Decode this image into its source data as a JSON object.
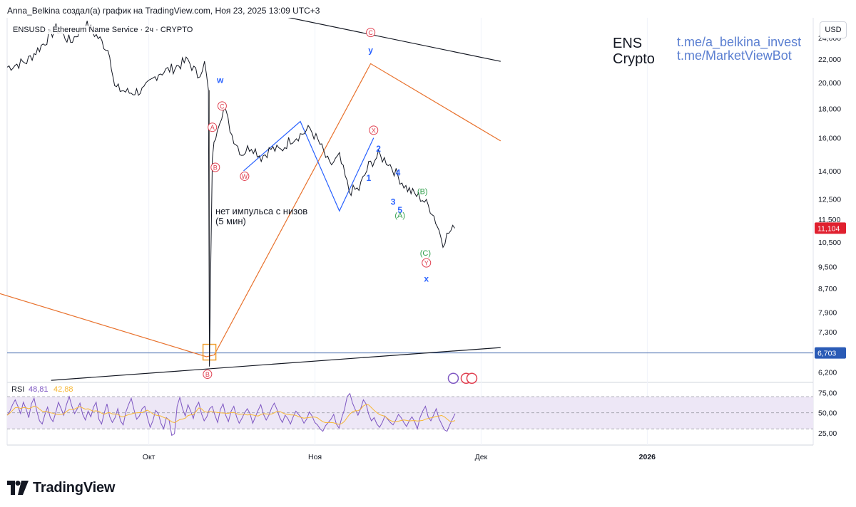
{
  "header": {
    "credit": "Anna_Belkina создал(а) график на TradingView.com, Ноя 23, 2025 13:09 UTC+3"
  },
  "chart_header": {
    "symbol": "ENSUSD · Ethereum Name Service · 2ч · CRYPTO",
    "currency": "USD"
  },
  "overlay": {
    "title_line1": "ENS",
    "title_line2": "Crypto",
    "link1": "t.me/a_belkina_invest",
    "link2": "t.me/MarketViewBot",
    "annotation_line1": "нет импульса с низов",
    "annotation_line2": "(5 мин)"
  },
  "footer": {
    "brand": "TradingView"
  },
  "colors": {
    "price_line": "#131722",
    "wave_blue": "#2962ff",
    "trend_orange": "#e8712c",
    "support_blue": "#4a6fb1",
    "red_label": "#e04050",
    "green_label": "#2e9e4a",
    "rsi_line": "#7e57c2",
    "rsi_ma": "#f7b733",
    "rsi_band": "#ede7f6",
    "price_badge": "#e0202f",
    "level_badge": "#2a5bb6"
  },
  "chart_data": [
    {
      "type": "line",
      "name": "ENSUSD 2h",
      "y_scale": "log",
      "ylim": [
        5900,
        26000
      ],
      "x_tick_labels": [
        "Окт",
        "Ноя",
        "Дек",
        "2026"
      ],
      "y_tick_labels": [
        "24,000",
        "22,000",
        "20,000",
        "18,000",
        "16,000",
        "14,000",
        "12,500",
        "11,500",
        "10,500",
        "9,500",
        "8,700",
        "7,900",
        "7,300",
        "6,200"
      ],
      "y_tick_values": [
        24000,
        22000,
        20000,
        18000,
        16000,
        14000,
        12500,
        11500,
        10500,
        9500,
        8700,
        7900,
        7300,
        6200
      ],
      "last_price": "11,104",
      "last_price_value": 11.104,
      "level_label": "6,703",
      "level_value": 6.703,
      "price_path": [
        [
          0,
          21.3
        ],
        [
          2,
          21.8
        ],
        [
          3.5,
          23.2
        ],
        [
          5,
          24.9
        ],
        [
          6.5,
          23.6
        ],
        [
          8,
          25.4
        ],
        [
          9.5,
          23.8
        ],
        [
          10.5,
          22.6
        ],
        [
          11,
          19.6
        ],
        [
          12.5,
          19.2
        ],
        [
          14,
          19.4
        ],
        [
          15.5,
          20.8
        ],
        [
          17,
          21.2
        ],
        [
          18.5,
          21.9
        ],
        [
          19.5,
          20.6
        ],
        [
          20.2,
          21.6
        ],
        [
          20.6,
          19.4
        ],
        [
          20.7,
          6.3
        ],
        [
          21,
          14.9
        ],
        [
          21.5,
          16.8
        ],
        [
          22.2,
          18.1
        ],
        [
          23,
          16.2
        ],
        [
          24,
          15.0
        ],
        [
          25,
          15.5
        ],
        [
          26,
          14.8
        ],
        [
          27,
          15.3
        ],
        [
          28,
          15.2
        ],
        [
          29,
          15.9
        ],
        [
          30,
          16.2
        ],
        [
          31,
          16.6
        ],
        [
          32,
          15.6
        ],
        [
          33,
          14.3
        ],
        [
          34,
          14.8
        ],
        [
          35,
          12.9
        ],
        [
          36,
          13.0
        ],
        [
          37,
          14.3
        ],
        [
          38,
          14.9
        ],
        [
          39,
          14.5
        ],
        [
          40,
          13.7
        ],
        [
          40.8,
          13.1
        ],
        [
          41.5,
          12.8
        ],
        [
          42.5,
          12.5
        ],
        [
          43.5,
          11.9
        ],
        [
          44.2,
          11.0
        ],
        [
          44.6,
          10.5
        ],
        [
          45.2,
          10.9
        ],
        [
          45.8,
          11.1
        ]
      ],
      "trendline_segments": [
        {
          "color": "orange",
          "points": [
            [
              -1.5,
              8.6
            ],
            [
              20.4,
              6.6
            ],
            [
              21.2,
              6.65
            ],
            [
              37.2,
              21.6
            ],
            [
              50.5,
              15.8
            ]
          ]
        },
        {
          "color": "black",
          "points": [
            [
              13.5,
              29.5
            ],
            [
              50.5,
              21.8
            ]
          ]
        },
        {
          "color": "black",
          "points": [
            [
              4.5,
              6.0
            ],
            [
              50.5,
              6.85
            ]
          ]
        },
        {
          "color": "blue",
          "points": [
            [
              24.2,
              14.0
            ],
            [
              30.0,
              17.1
            ],
            [
              34.0,
              11.9
            ],
            [
              37.5,
              16.0
            ]
          ]
        }
      ],
      "wave_labels": [
        {
          "text": "w",
          "style": "plain",
          "color": "blue",
          "at": [
            21.8,
            20.2
          ]
        },
        {
          "text": "C",
          "style": "circled",
          "color": "red",
          "at": [
            22.0,
            18.2
          ]
        },
        {
          "text": "A",
          "style": "circled",
          "color": "red",
          "at": [
            21.0,
            16.7
          ]
        },
        {
          "text": "B",
          "style": "circled",
          "color": "red",
          "at": [
            21.3,
            14.2
          ]
        },
        {
          "text": "W",
          "style": "circled",
          "color": "red",
          "at": [
            24.3,
            13.7
          ]
        },
        {
          "text": "X",
          "style": "circled",
          "color": "red",
          "at": [
            37.5,
            16.5
          ]
        },
        {
          "text": "2",
          "style": "plain",
          "color": "blue",
          "at": [
            38.0,
            15.3
          ]
        },
        {
          "text": "1",
          "style": "plain",
          "color": "blue",
          "at": [
            37.0,
            13.6
          ]
        },
        {
          "text": "4",
          "style": "plain",
          "color": "blue",
          "at": [
            40.0,
            13.9
          ]
        },
        {
          "text": "3",
          "style": "plain",
          "color": "blue",
          "at": [
            39.5,
            12.35
          ]
        },
        {
          "text": "5",
          "style": "plain",
          "color": "blue",
          "at": [
            40.2,
            11.95
          ]
        },
        {
          "text": "A",
          "style": "paren",
          "color": "green",
          "at": [
            40.2,
            11.7
          ]
        },
        {
          "text": "B",
          "style": "paren",
          "color": "green",
          "at": [
            42.5,
            12.9
          ]
        },
        {
          "text": "C",
          "style": "paren",
          "color": "green",
          "at": [
            42.8,
            10.05
          ]
        },
        {
          "text": "Y",
          "style": "circled",
          "color": "red",
          "at": [
            42.9,
            9.65
          ]
        },
        {
          "text": "x",
          "style": "plain",
          "color": "blue",
          "at": [
            42.9,
            9.05
          ]
        },
        {
          "text": "C",
          "style": "circled",
          "color": "red",
          "at": [
            37.2,
            24.5
          ]
        },
        {
          "text": "y",
          "style": "plain",
          "color": "blue",
          "at": [
            37.2,
            22.8
          ]
        },
        {
          "text": "B",
          "style": "circled",
          "color": "red",
          "at": [
            20.5,
            6.15
          ]
        }
      ],
      "x_grid_positions": [
        14.5,
        31.5,
        48.5,
        65.5
      ]
    },
    {
      "type": "line",
      "name": "RSI",
      "title": "RSI",
      "legend_values": [
        "48,81",
        "42,88"
      ],
      "ylim": [
        10,
        85
      ],
      "y_tick_labels": [
        "75,00",
        "50,00",
        "25,00"
      ],
      "y_tick_values": [
        75,
        50,
        25
      ],
      "band": [
        30,
        70
      ],
      "series": [
        {
          "name": "RSI",
          "values": [
            47,
            52,
            60,
            66,
            58,
            49,
            63,
            55,
            44,
            61,
            68,
            52,
            40,
            36,
            48,
            57,
            44,
            39,
            50,
            63,
            55,
            47,
            60,
            70,
            58,
            49,
            55,
            62,
            48,
            41,
            52,
            45,
            57,
            63,
            42,
            36,
            50,
            61,
            45,
            38,
            44,
            55,
            40,
            35,
            51,
            60,
            68,
            54,
            42,
            46,
            55,
            58,
            44,
            32,
            40,
            53,
            49,
            37,
            30,
            44,
            41,
            22,
            24,
            58,
            69,
            55,
            46,
            60,
            52,
            43,
            57,
            63,
            49,
            40,
            45,
            55,
            58,
            47,
            38,
            54,
            61,
            47,
            39,
            52,
            58,
            45,
            37,
            43,
            50,
            55,
            49,
            37,
            45,
            53,
            60,
            48,
            41,
            47,
            56,
            62,
            54,
            44,
            38,
            47,
            43,
            36,
            45,
            52,
            48,
            44,
            37,
            42,
            51,
            46,
            38,
            35,
            30,
            27,
            34,
            38,
            42,
            48,
            36,
            31,
            44,
            54,
            70,
            74,
            62,
            54,
            47,
            55,
            66,
            61,
            48,
            40,
            44,
            36,
            32,
            38,
            46,
            42,
            38,
            35,
            41,
            48,
            44,
            38,
            33,
            40,
            45,
            39,
            30,
            44,
            52,
            58,
            45,
            40,
            47,
            55,
            43,
            36,
            29,
            27,
            35,
            42,
            49
          ]
        },
        {
          "name": "RSI MA",
          "values": []
        }
      ]
    }
  ]
}
